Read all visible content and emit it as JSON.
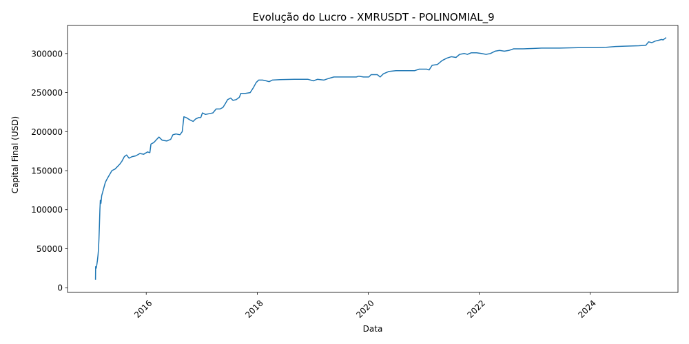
{
  "chart_data": {
    "type": "line",
    "title": "Evolução do Lucro - XMRUSDT - POLINOMIAL_9",
    "xlabel": "Data",
    "ylabel": "Capital Final (USD)",
    "xlim": [
      "2014-08-01",
      "2025-08-01"
    ],
    "ylim": [
      -6000,
      336000
    ],
    "x_ticks": [
      "2016",
      "2018",
      "2020",
      "2022",
      "2024"
    ],
    "y_ticks": [
      0,
      50000,
      100000,
      150000,
      200000,
      250000,
      300000
    ],
    "grid": false,
    "legend": "none",
    "series": [
      {
        "color": "#1f77b4",
        "points": [
          [
            "2015-02-01",
            10000
          ],
          [
            "2015-02-02",
            27000
          ],
          [
            "2015-02-06",
            25000
          ],
          [
            "2015-02-10",
            30000
          ],
          [
            "2015-02-14",
            35000
          ],
          [
            "2015-02-18",
            42000
          ],
          [
            "2015-02-21",
            50000
          ],
          [
            "2015-02-24",
            62000
          ],
          [
            "2015-02-27",
            80000
          ],
          [
            "2015-03-02",
            100000
          ],
          [
            "2015-03-05",
            112000
          ],
          [
            "2015-03-09",
            108000
          ],
          [
            "2015-03-14",
            118000
          ],
          [
            "2015-03-20",
            122000
          ],
          [
            "2015-03-28",
            128000
          ],
          [
            "2015-04-07",
            135000
          ],
          [
            "2015-04-20",
            140000
          ],
          [
            "2015-05-05",
            145000
          ],
          [
            "2015-05-20",
            150000
          ],
          [
            "2015-06-10",
            152000
          ],
          [
            "2015-06-25",
            155000
          ],
          [
            "2015-07-10",
            158000
          ],
          [
            "2015-07-25",
            162000
          ],
          [
            "2015-08-10",
            168000
          ],
          [
            "2015-08-25",
            170000
          ],
          [
            "2015-09-10",
            166000
          ],
          [
            "2015-10-01",
            168000
          ],
          [
            "2015-10-25",
            169000
          ],
          [
            "2015-11-20",
            172000
          ],
          [
            "2015-12-15",
            171000
          ],
          [
            "2016-01-10",
            174000
          ],
          [
            "2016-01-25",
            173000
          ],
          [
            "2016-02-01",
            184000
          ],
          [
            "2016-02-20",
            186000
          ],
          [
            "2016-03-10",
            190000
          ],
          [
            "2016-03-25",
            193000
          ],
          [
            "2016-04-15",
            189000
          ],
          [
            "2016-05-15",
            188000
          ],
          [
            "2016-06-10",
            190000
          ],
          [
            "2016-06-25",
            196000
          ],
          [
            "2016-07-15",
            197000
          ],
          [
            "2016-08-10",
            196000
          ],
          [
            "2016-08-25",
            200000
          ],
          [
            "2016-09-05",
            219000
          ],
          [
            "2016-09-20",
            218000
          ],
          [
            "2016-10-15",
            215000
          ],
          [
            "2016-11-05",
            213000
          ],
          [
            "2016-11-20",
            216000
          ],
          [
            "2016-12-10",
            218000
          ],
          [
            "2016-12-25",
            218000
          ],
          [
            "2017-01-05",
            224000
          ],
          [
            "2017-01-25",
            222000
          ],
          [
            "2017-02-20",
            223000
          ],
          [
            "2017-03-15",
            224000
          ],
          [
            "2017-04-05",
            229000
          ],
          [
            "2017-05-01",
            229000
          ],
          [
            "2017-05-20",
            231000
          ],
          [
            "2017-06-05",
            236000
          ],
          [
            "2017-06-20",
            241000
          ],
          [
            "2017-07-10",
            243000
          ],
          [
            "2017-07-25",
            240000
          ],
          [
            "2017-08-15",
            241000
          ],
          [
            "2017-09-05",
            244000
          ],
          [
            "2017-09-15",
            249000
          ],
          [
            "2017-10-15",
            249000
          ],
          [
            "2017-11-15",
            250000
          ],
          [
            "2017-12-05",
            256000
          ],
          [
            "2017-12-25",
            263000
          ],
          [
            "2018-01-10",
            266000
          ],
          [
            "2018-02-05",
            266000
          ],
          [
            "2018-03-01",
            265000
          ],
          [
            "2018-03-20",
            264000
          ],
          [
            "2018-04-10",
            266000
          ],
          [
            "2018-06-01",
            266500
          ],
          [
            "2018-09-01",
            267000
          ],
          [
            "2018-12-01",
            267000
          ],
          [
            "2019-01-05",
            265000
          ],
          [
            "2019-02-01",
            267000
          ],
          [
            "2019-03-15",
            266000
          ],
          [
            "2019-04-15",
            268000
          ],
          [
            "2019-05-20",
            270000
          ],
          [
            "2019-07-01",
            270000
          ],
          [
            "2019-09-01",
            270000
          ],
          [
            "2019-10-15",
            270000
          ],
          [
            "2019-11-01",
            271000
          ],
          [
            "2019-12-01",
            270000
          ],
          [
            "2020-01-05",
            270000
          ],
          [
            "2020-01-20",
            273000
          ],
          [
            "2020-03-01",
            273000
          ],
          [
            "2020-03-20",
            270000
          ],
          [
            "2020-04-10",
            274000
          ],
          [
            "2020-05-15",
            277000
          ],
          [
            "2020-07-01",
            278000
          ],
          [
            "2020-09-01",
            278000
          ],
          [
            "2020-11-01",
            278000
          ],
          [
            "2020-12-01",
            280000
          ],
          [
            "2021-01-20",
            280000
          ],
          [
            "2021-02-05",
            279000
          ],
          [
            "2021-02-25",
            285000
          ],
          [
            "2021-04-01",
            286000
          ],
          [
            "2021-05-01",
            291000
          ],
          [
            "2021-06-01",
            294000
          ],
          [
            "2021-07-01",
            296000
          ],
          [
            "2021-08-01",
            295000
          ],
          [
            "2021-08-25",
            299000
          ],
          [
            "2021-09-25",
            300000
          ],
          [
            "2021-10-15",
            299000
          ],
          [
            "2021-11-10",
            301000
          ],
          [
            "2021-12-15",
            301000
          ],
          [
            "2022-01-15",
            300000
          ],
          [
            "2022-02-15",
            299000
          ],
          [
            "2022-03-15",
            300000
          ],
          [
            "2022-04-15",
            303000
          ],
          [
            "2022-05-15",
            304000
          ],
          [
            "2022-06-15",
            303000
          ],
          [
            "2022-07-15",
            304000
          ],
          [
            "2022-08-15",
            306000
          ],
          [
            "2022-10-15",
            306000
          ],
          [
            "2022-12-15",
            306500
          ],
          [
            "2023-02-15",
            307000
          ],
          [
            "2023-06-15",
            307000
          ],
          [
            "2023-10-15",
            307500
          ],
          [
            "2024-02-15",
            307500
          ],
          [
            "2024-04-15",
            308000
          ],
          [
            "2024-06-15",
            309000
          ],
          [
            "2024-08-15",
            309500
          ],
          [
            "2024-11-15",
            310000
          ],
          [
            "2025-01-01",
            310500
          ],
          [
            "2025-01-20",
            315000
          ],
          [
            "2025-02-10",
            314000
          ],
          [
            "2025-03-05",
            316000
          ],
          [
            "2025-03-25",
            317000
          ],
          [
            "2025-04-15",
            318000
          ],
          [
            "2025-04-25",
            317500
          ],
          [
            "2025-05-05",
            319000
          ],
          [
            "2025-05-15",
            320500
          ]
        ]
      }
    ]
  }
}
